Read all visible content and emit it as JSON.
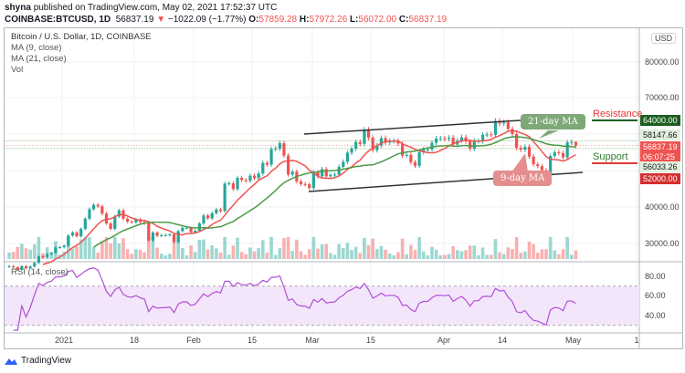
{
  "header": {
    "publisher": "shyna",
    "published_text": "published on TradingView.com, May 02, 2021 17:52:37 UTC",
    "symbol": "COINBASE:BTCUSD, 1D",
    "last": "56837.19",
    "change": "−1022.09 (−1.77%)",
    "open_label": "O:",
    "open": "57859.28",
    "high_label": "H:",
    "high": "57972.26",
    "low_label": "L:",
    "low": "56072.00",
    "close_label": "C:",
    "close": "56837.19"
  },
  "legend": {
    "title": "Bitcoin / U.S. Dollar, 1D, COINBASE",
    "ma9": "MA (9, close)",
    "ma21": "MA (21, close)",
    "vol": "Vol",
    "rsi": "RSI (14, close)"
  },
  "currency": "USD",
  "price_axis": [
    "80000.00",
    "70000.00",
    "40000.00",
    "30000.00"
  ],
  "rsi_axis": [
    "80.00",
    "60.00",
    "40.00"
  ],
  "time_axis": [
    "2021",
    "18",
    "Feb",
    "15",
    "Mar",
    "15",
    "Apr",
    "14",
    "May",
    "1"
  ],
  "price_tags": {
    "resistance_level": "64000.00",
    "ma21_value": "58147.66",
    "last_price": "56837.19",
    "countdown": "06:07:25",
    "ma9_value": "56033.26",
    "support_level": "52000.00"
  },
  "annotations": {
    "resistance": "Resistance",
    "support": "Support",
    "ma21_callout": "21-day MA",
    "ma9_callout": "9-day MA"
  },
  "colors": {
    "up": "#26a69a",
    "down": "#ef5350",
    "ma9": "#ef5350",
    "ma21": "#4c9a45",
    "rsi": "#b04fd6",
    "rsi_band": "#f3e6fb"
  },
  "branding": "TradingView",
  "chart_data": {
    "type": "candlestick",
    "start_date": "2020-12-19",
    "interval": "1D",
    "closes": [
      23800,
      23500,
      22800,
      23800,
      23200,
      23700,
      24700,
      26500,
      26300,
      27100,
      27400,
      28900,
      29000,
      29400,
      32200,
      33000,
      32000,
      34000,
      36800,
      39400,
      40600,
      40200,
      38200,
      35500,
      34000,
      37400,
      39100,
      36800,
      36000,
      35800,
      36600,
      35900,
      35500,
      30800,
      33000,
      32100,
      32300,
      32300,
      32500,
      30400,
      33400,
      34300,
      34300,
      33100,
      33500,
      35500,
      37700,
      36900,
      38300,
      39300,
      38900,
      46400,
      46500,
      44900,
      48000,
      47400,
      47200,
      48600,
      47900,
      49200,
      52100,
      51600,
      55900,
      56000,
      57500,
      54100,
      48900,
      49700,
      47000,
      46300,
      46200,
      45200,
      49600,
      48400,
      50400,
      48400,
      48800,
      48900,
      51000,
      52400,
      54900,
      56000,
      57800,
      57300,
      61200,
      59000,
      55600,
      56900,
      58900,
      57700,
      58100,
      58100,
      57400,
      54100,
      54300,
      52300,
      51300,
      55000,
      55800,
      55800,
      57600,
      58800,
      58800,
      58700,
      59000,
      57100,
      58200,
      59100,
      58000,
      56000,
      58100,
      58100,
      59800,
      59900,
      59800,
      63600,
      62900,
      63200,
      61400,
      60000,
      56200,
      55700,
      56500,
      53800,
      51700,
      51200,
      50100,
      49000,
      54000,
      55000,
      54800,
      53600,
      57700,
      57800,
      56837.19
    ],
    "last_bar": {
      "open": 57859.28,
      "high": 57972.26,
      "low": 56072.0,
      "close": 56837.19
    },
    "indicators": [
      "MA 9",
      "MA 21",
      "Volume",
      "RSI 14"
    ],
    "horizontal_levels": {
      "resistance": 64000,
      "support": 52000
    },
    "rsi_bands": [
      30,
      70
    ],
    "price_range": [
      27000,
      85000
    ],
    "rsi_range": [
      25,
      90
    ]
  }
}
